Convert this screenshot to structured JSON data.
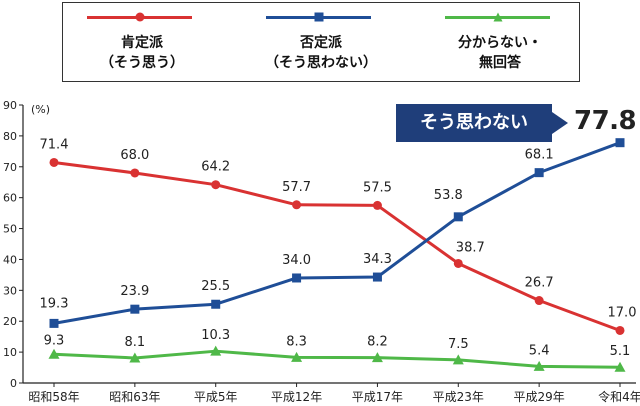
{
  "legend": {
    "items": [
      {
        "line1": "肯定派",
        "line2": "（そう思う）",
        "color": "#d93232",
        "marker": "circle"
      },
      {
        "line1": "否定派",
        "line2": "（そう思わない）",
        "color": "#1f4e97",
        "marker": "square"
      },
      {
        "line1": "分からない・",
        "line2": "無回答",
        "color": "#4fb848",
        "marker": "triangle"
      }
    ]
  },
  "callout": {
    "text": "そう思わない",
    "value": "77.8"
  },
  "chart_data": {
    "type": "line",
    "ylabel": "(%)",
    "ylim": [
      0,
      90
    ],
    "yticks": [
      0,
      10,
      20,
      30,
      40,
      50,
      60,
      70,
      80,
      90
    ],
    "categories": [
      "昭和58年",
      "昭和63年",
      "平成5年",
      "平成12年",
      "平成17年",
      "平成23年",
      "平成29年",
      "令和4年"
    ],
    "series": [
      {
        "values": [
          71.4,
          68.0,
          64.2,
          57.7,
          57.5,
          38.7,
          26.7,
          17.0
        ],
        "color": "#d93232",
        "marker": "circle",
        "labels": [
          "71.4",
          "68.0",
          "64.2",
          "57.7",
          "57.5",
          "38.7",
          "26.7",
          "17.0"
        ]
      },
      {
        "values": [
          19.3,
          23.9,
          25.5,
          34.0,
          34.3,
          53.8,
          68.1,
          77.8
        ],
        "color": "#1f4e97",
        "marker": "square",
        "labels": [
          "19.3",
          "23.9",
          "25.5",
          "34.0",
          "34.3",
          "53.8",
          "68.1",
          ""
        ]
      },
      {
        "values": [
          9.3,
          8.1,
          10.3,
          8.3,
          8.2,
          7.5,
          5.4,
          5.1
        ],
        "color": "#4fb848",
        "marker": "triangle",
        "labels": [
          "9.3",
          "8.1",
          "10.3",
          "8.3",
          "8.2",
          "7.5",
          "5.4",
          "5.1"
        ]
      }
    ],
    "grid": false
  }
}
